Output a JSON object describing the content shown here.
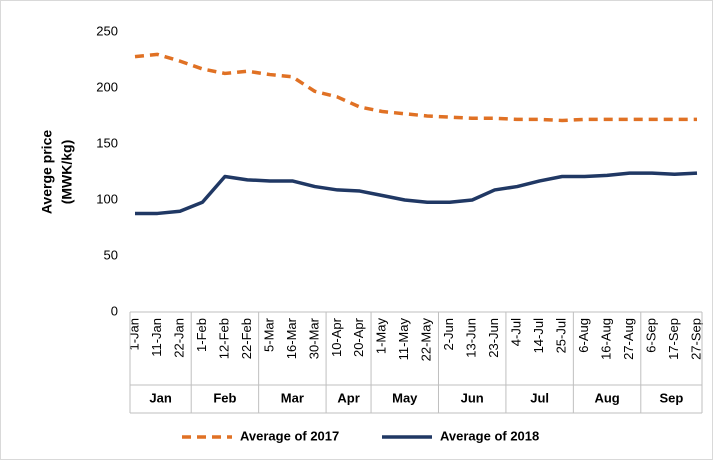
{
  "chart_data": {
    "type": "line",
    "y_label": [
      "Averge price",
      "(MWK/kg)"
    ],
    "categories": [
      "1-Jan",
      "11-Jan",
      "22-Jan",
      "1-Feb",
      "12-Feb",
      "22-Feb",
      "5-Mar",
      "16-Mar",
      "30-Mar",
      "10-Apr",
      "20-Apr",
      "1-May",
      "11-May",
      "22-May",
      "2-Jun",
      "13-Jun",
      "23-Jun",
      "4-Jul",
      "14-Jul",
      "25-Jul",
      "6-Aug",
      "16-Aug",
      "27-Aug",
      "6-Sep",
      "17-Sep",
      "27-Sep"
    ],
    "month_groups": [
      "Jan",
      "Feb",
      "Mar",
      "Apr",
      "May",
      "Jun",
      "Jul",
      "Aug",
      "Sep"
    ],
    "series": [
      {
        "name": "Average of 2017",
        "color": "#e07124",
        "dashed": true,
        "values": [
          228,
          230,
          224,
          217,
          213,
          215,
          212,
          210,
          197,
          192,
          183,
          179,
          177,
          175,
          174,
          173,
          173,
          172,
          172,
          171,
          172,
          172,
          172,
          172,
          172,
          172
        ]
      },
      {
        "name": "Average of 2018",
        "color": "#203864",
        "dashed": false,
        "values": [
          88,
          88,
          90,
          98,
          121,
          118,
          117,
          117,
          112,
          109,
          108,
          104,
          100,
          98,
          98,
          100,
          109,
          112,
          117,
          121,
          121,
          122,
          124,
          124,
          123,
          124
        ]
      }
    ],
    "ylim": [
      0,
      250
    ],
    "yticks": [
      0,
      50,
      100,
      150,
      200,
      250
    ],
    "grid": false
  }
}
